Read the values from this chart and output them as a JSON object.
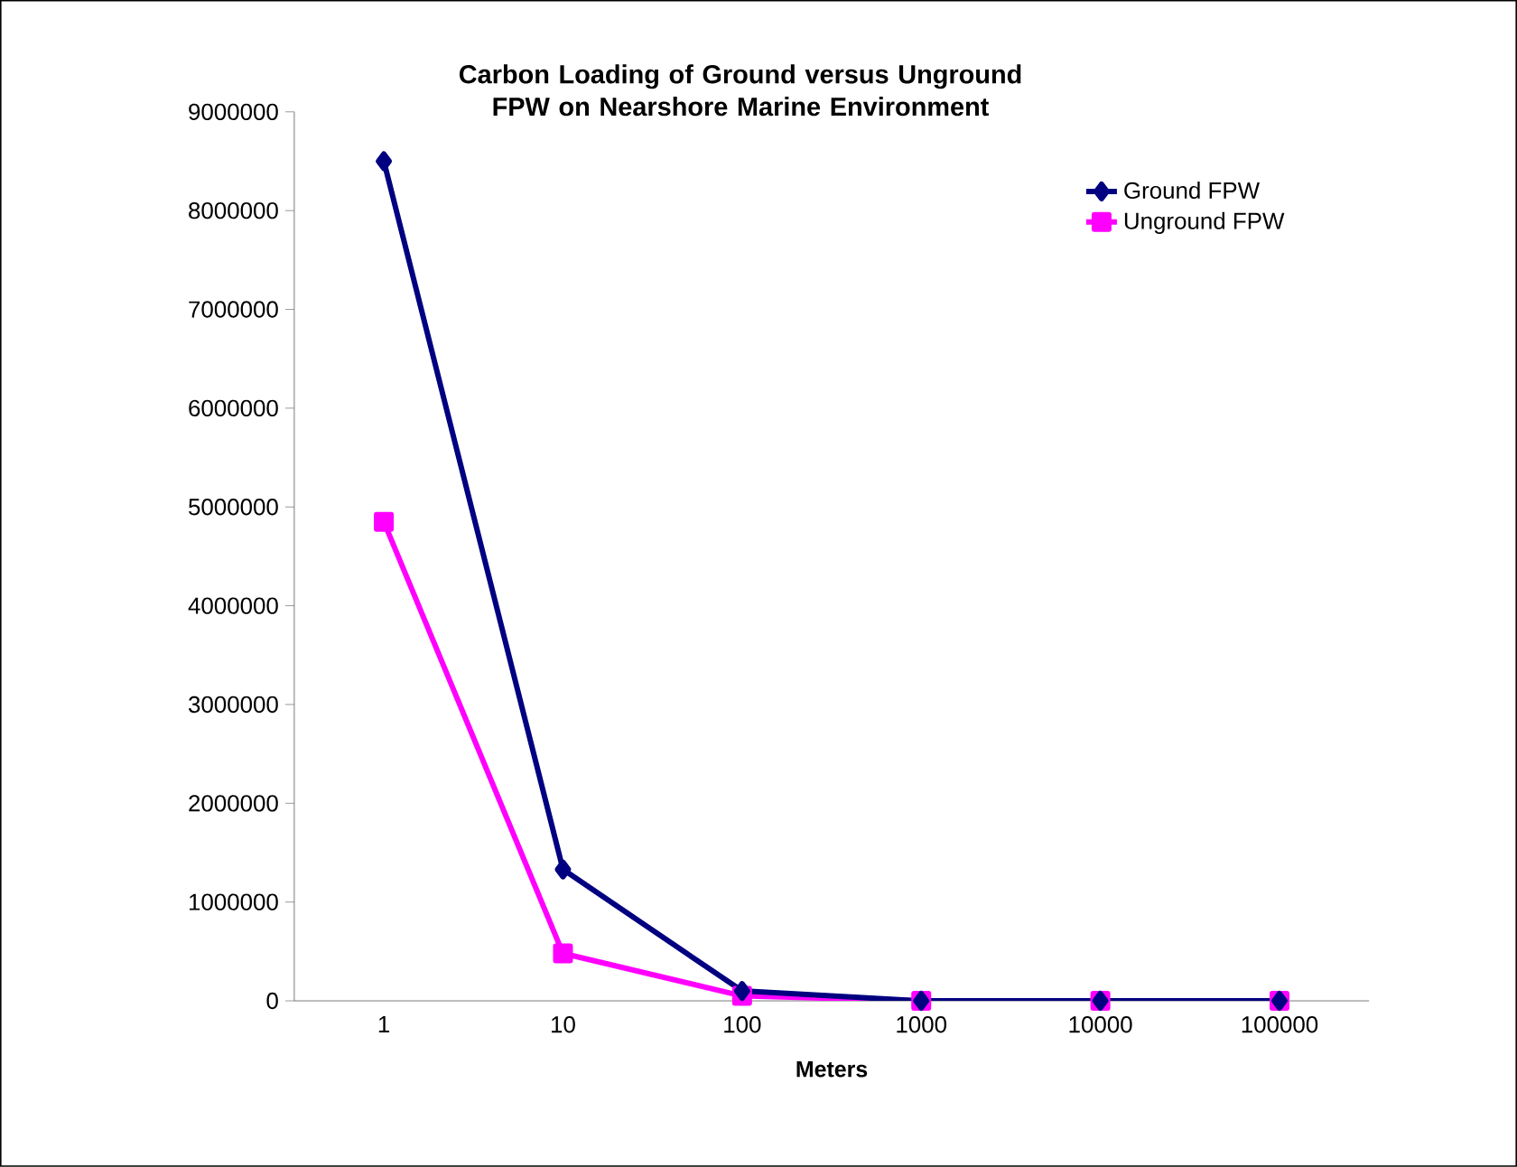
{
  "chart_data": {
    "type": "line",
    "title": "Carbon Loading of Ground versus Unground FPW on Nearshore Marine Environment",
    "xlabel": "Meters",
    "categories": [
      "1",
      "10",
      "100",
      "1000",
      "10000",
      "100000"
    ],
    "series": [
      {
        "name": "Ground FPW",
        "color": "#000080",
        "marker": "diamond",
        "values": [
          8500000,
          1330000,
          100000,
          0,
          0,
          0
        ]
      },
      {
        "name": "Unground FPW",
        "color": "#ff00ff",
        "marker": "square",
        "values": [
          4850000,
          480000,
          50000,
          0,
          0,
          0
        ]
      }
    ],
    "ylim": [
      0,
      9000000
    ],
    "yticks": [
      0,
      1000000,
      2000000,
      3000000,
      4000000,
      5000000,
      6000000,
      7000000,
      8000000,
      9000000
    ],
    "legend": "top right",
    "grid": false,
    "line_style": "solid"
  }
}
